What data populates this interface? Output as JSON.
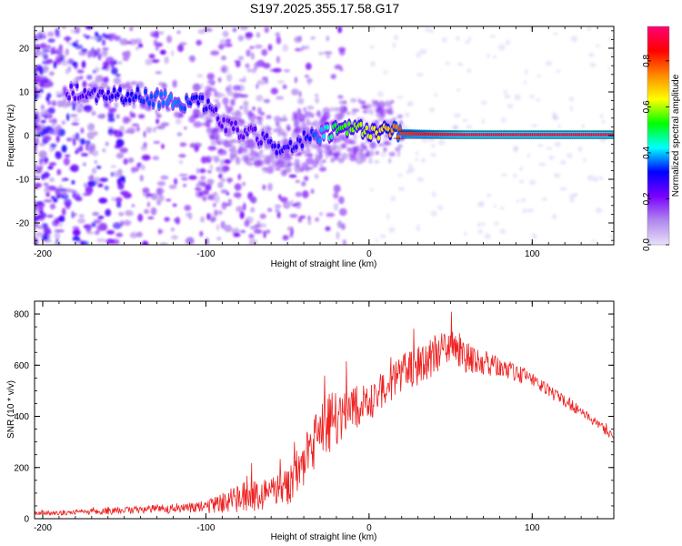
{
  "title": "S197.2025.355.17.58.G17",
  "colors": {
    "background": "#ffffff",
    "axis": "#000000",
    "snr_line": "#ee2222",
    "colormap": [
      "#e8e0f8",
      "#b088ee",
      "#7a00ff",
      "#0000ff",
      "#00ffff",
      "#00ff00",
      "#ffff00",
      "#ff8800",
      "#ff0000",
      "#ff0077"
    ]
  },
  "chart_data": [
    {
      "type": "heatmap",
      "xlabel": "Height of straight line (km)",
      "ylabel": "Frequency (Hz)",
      "xlim": [
        -205,
        150
      ],
      "ylim": [
        -25,
        25
      ],
      "xticks": [
        -200,
        -100,
        0,
        100
      ],
      "xtick_labels": [
        "-200",
        "-100",
        "0",
        "100"
      ],
      "yticks": [
        -20,
        -10,
        0,
        10,
        20
      ],
      "ytick_labels": [
        "-20",
        "-10",
        "0",
        "10",
        "20"
      ],
      "ridge": {
        "x": [
          -180,
          -160,
          -140,
          -120,
          -100,
          -90,
          -80,
          -70,
          -60,
          -50,
          -40,
          -30,
          -20,
          -10,
          0,
          10,
          20,
          40,
          60,
          80,
          100,
          120,
          150
        ],
        "y": [
          10,
          9.5,
          9,
          8,
          7,
          3,
          1,
          0,
          -2,
          -3,
          -1,
          0,
          1,
          1.5,
          1,
          1,
          0.5,
          0.3,
          0.2,
          0.2,
          0.2,
          0.2,
          0.2
        ],
        "amplitude": [
          0.25,
          0.3,
          0.35,
          0.4,
          0.3,
          0.25,
          0.25,
          0.25,
          0.3,
          0.3,
          0.3,
          0.4,
          0.55,
          0.6,
          0.65,
          0.7,
          0.85,
          0.9,
          0.95,
          0.95,
          0.95,
          0.95,
          0.95
        ]
      },
      "colorbar": {
        "label": "Normalized spectral amplitude",
        "range": [
          0,
          0.95
        ],
        "ticks": [
          0.0,
          0.2,
          0.4,
          0.6,
          0.8
        ],
        "tick_labels": [
          "0.0",
          "0.2",
          "0.4",
          "0.6",
          "0.8"
        ]
      }
    },
    {
      "type": "line",
      "xlabel": "Height of straight line (km)",
      "ylabel": "SNR (10 * v/v)",
      "xlim": [
        -205,
        150
      ],
      "ylim": [
        0,
        850
      ],
      "xticks": [
        -200,
        -100,
        0,
        100
      ],
      "xtick_labels": [
        "-200",
        "-100",
        "0",
        "100"
      ],
      "yticks": [
        0,
        200,
        400,
        600,
        800
      ],
      "ytick_labels": [
        "0",
        "200",
        "400",
        "600",
        "800"
      ],
      "series": [
        {
          "name": "SNR",
          "x": [
            -205,
            -180,
            -160,
            -140,
            -120,
            -100,
            -90,
            -80,
            -70,
            -60,
            -50,
            -40,
            -30,
            -20,
            -10,
            0,
            10,
            20,
            30,
            40,
            50,
            60,
            70,
            80,
            90,
            100,
            110,
            120,
            130,
            140,
            150
          ],
          "y": [
            20,
            25,
            30,
            35,
            40,
            45,
            60,
            80,
            90,
            100,
            130,
            220,
            330,
            400,
            420,
            460,
            510,
            570,
            600,
            640,
            660,
            630,
            610,
            590,
            570,
            550,
            500,
            460,
            420,
            370,
            320
          ],
          "noise": [
            8,
            10,
            15,
            15,
            20,
            25,
            40,
            60,
            60,
            60,
            80,
            100,
            120,
            120,
            100,
            80,
            70,
            70,
            80,
            80,
            80,
            60,
            50,
            40,
            35,
            30,
            25,
            25,
            20,
            20,
            15
          ]
        }
      ]
    }
  ]
}
